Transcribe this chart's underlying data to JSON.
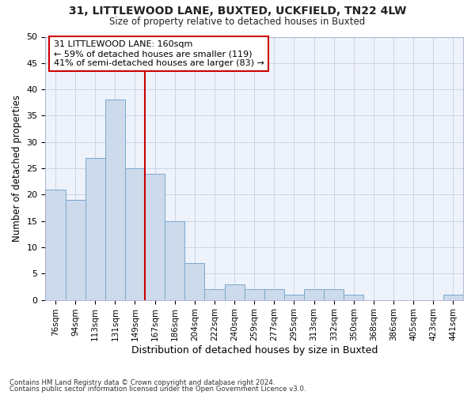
{
  "title_line1": "31, LITTLEWOOD LANE, BUXTED, UCKFIELD, TN22 4LW",
  "title_line2": "Size of property relative to detached houses in Buxted",
  "xlabel": "Distribution of detached houses by size in Buxted",
  "ylabel": "Number of detached properties",
  "categories": [
    "76sqm",
    "94sqm",
    "113sqm",
    "131sqm",
    "149sqm",
    "167sqm",
    "186sqm",
    "204sqm",
    "222sqm",
    "240sqm",
    "259sqm",
    "277sqm",
    "295sqm",
    "313sqm",
    "332sqm",
    "350sqm",
    "368sqm",
    "386sqm",
    "405sqm",
    "423sqm",
    "441sqm"
  ],
  "values": [
    21,
    19,
    27,
    38,
    25,
    24,
    15,
    7,
    2,
    3,
    2,
    2,
    1,
    2,
    2,
    1,
    0,
    0,
    0,
    0,
    1
  ],
  "bar_color": "#ccdaeb",
  "bar_edge_color": "#7aa8cc",
  "vline_x": 4.5,
  "vline_color": "#cc0000",
  "annotation_line1": "31 LITTLEWOOD LANE: 160sqm",
  "annotation_line2": "← 59% of detached houses are smaller (119)",
  "annotation_line3": "41% of semi-detached houses are larger (83) →",
  "annotation_box_edge": "#cc0000",
  "ylim": [
    0,
    50
  ],
  "yticks": [
    0,
    5,
    10,
    15,
    20,
    25,
    30,
    35,
    40,
    45,
    50
  ],
  "footnote1": "Contains HM Land Registry data © Crown copyright and database right 2024.",
  "footnote2": "Contains public sector information licensed under the Open Government Licence v3.0.",
  "bg_color": "#eef2fb",
  "grid_color": "#c0c8dc"
}
